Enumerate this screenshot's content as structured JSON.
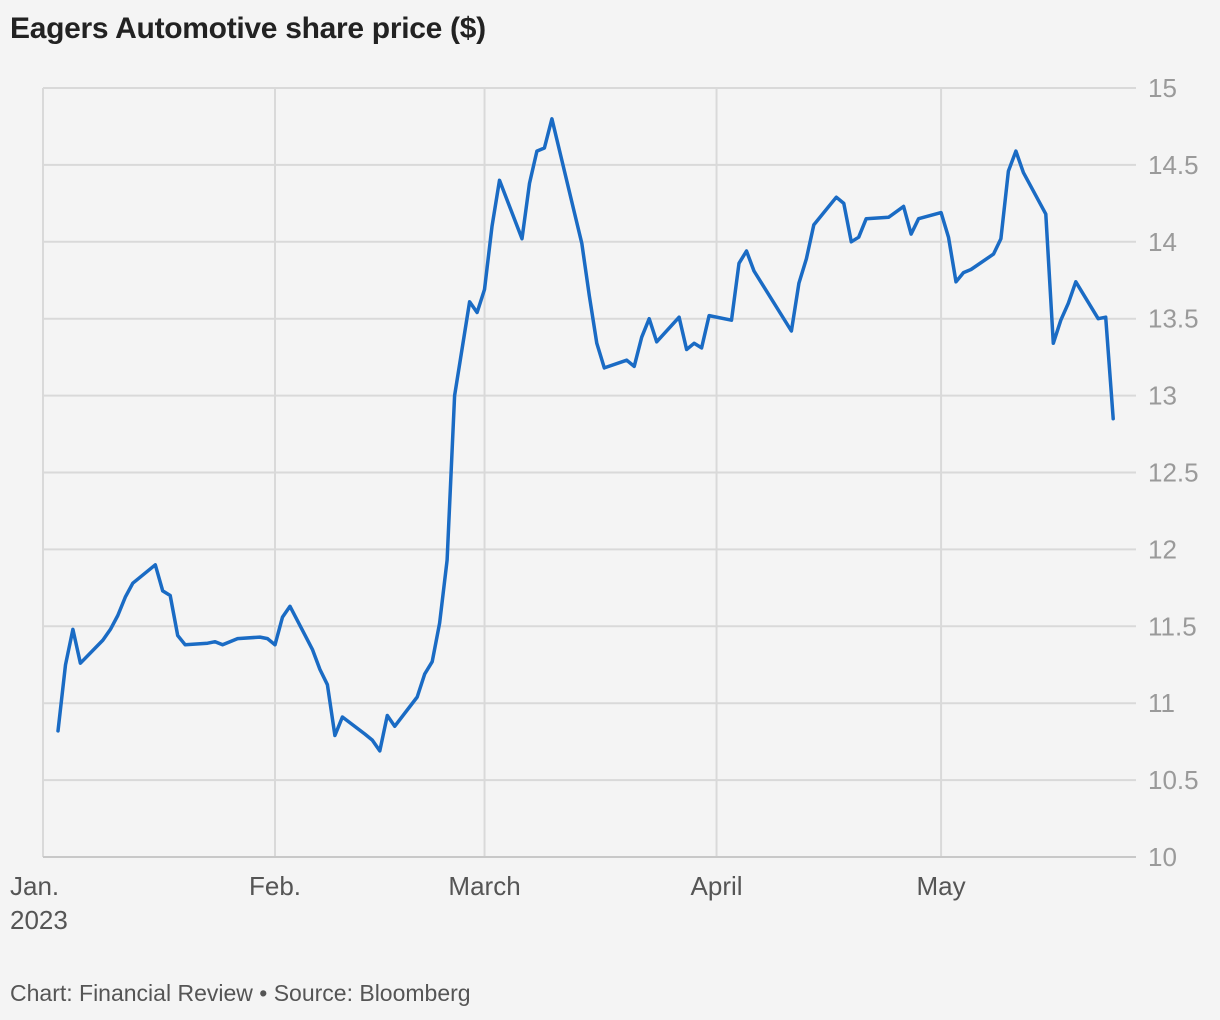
{
  "chart_data": {
    "type": "line",
    "title": "Eagers Automotive share price ($)",
    "credit": "Chart: Financial Review • Source: Bloomberg",
    "xlabel": "",
    "ylabel": "",
    "x_range": [
      "2023-01-01",
      "2023-05-24"
    ],
    "ylim": [
      10,
      15
    ],
    "yticks": [
      "15",
      "14.5",
      "14",
      "13.5",
      "13",
      "12.5",
      "12",
      "11.5",
      "11",
      "10.5",
      "10"
    ],
    "xticks": [
      {
        "date": "2023-01-01",
        "label": "Jan.",
        "sublabel": "2023"
      },
      {
        "date": "2023-02-01",
        "label": "Feb."
      },
      {
        "date": "2023-03-01",
        "label": "March"
      },
      {
        "date": "2023-04-01",
        "label": "April"
      },
      {
        "date": "2023-05-01",
        "label": "May"
      }
    ],
    "grid": true,
    "axis_side": "right",
    "series": [
      {
        "color": "#1a6bc4",
        "points": [
          [
            "2023-01-03",
            10.82
          ],
          [
            "2023-01-04",
            11.25
          ],
          [
            "2023-01-05",
            11.48
          ],
          [
            "2023-01-06",
            11.26
          ],
          [
            "2023-01-09",
            11.41
          ],
          [
            "2023-01-10",
            11.48
          ],
          [
            "2023-01-11",
            11.57
          ],
          [
            "2023-01-12",
            11.69
          ],
          [
            "2023-01-13",
            11.78
          ],
          [
            "2023-01-16",
            11.9
          ],
          [
            "2023-01-17",
            11.73
          ],
          [
            "2023-01-18",
            11.7
          ],
          [
            "2023-01-19",
            11.44
          ],
          [
            "2023-01-20",
            11.38
          ],
          [
            "2023-01-23",
            11.39
          ],
          [
            "2023-01-24",
            11.4
          ],
          [
            "2023-01-25",
            11.38
          ],
          [
            "2023-01-27",
            11.42
          ],
          [
            "2023-01-30",
            11.43
          ],
          [
            "2023-01-31",
            11.42
          ],
          [
            "2023-02-01",
            11.38
          ],
          [
            "2023-02-02",
            11.56
          ],
          [
            "2023-02-03",
            11.63
          ],
          [
            "2023-02-06",
            11.35
          ],
          [
            "2023-02-07",
            11.22
          ],
          [
            "2023-02-08",
            11.12
          ],
          [
            "2023-02-09",
            10.79
          ],
          [
            "2023-02-10",
            10.91
          ],
          [
            "2023-02-13",
            10.8
          ],
          [
            "2023-02-14",
            10.76
          ],
          [
            "2023-02-15",
            10.69
          ],
          [
            "2023-02-16",
            10.92
          ],
          [
            "2023-02-17",
            10.85
          ],
          [
            "2023-02-20",
            11.04
          ],
          [
            "2023-02-21",
            11.19
          ],
          [
            "2023-02-22",
            11.27
          ],
          [
            "2023-02-23",
            11.52
          ],
          [
            "2023-02-24",
            11.93
          ],
          [
            "2023-02-25",
            13.0
          ],
          [
            "2023-02-27",
            13.61
          ],
          [
            "2023-02-28",
            13.54
          ],
          [
            "2023-03-01",
            13.69
          ],
          [
            "2023-03-02",
            14.1
          ],
          [
            "2023-03-03",
            14.4
          ],
          [
            "2023-03-06",
            14.02
          ],
          [
            "2023-03-07",
            14.38
          ],
          [
            "2023-03-08",
            14.59
          ],
          [
            "2023-03-09",
            14.61
          ],
          [
            "2023-03-10",
            14.8
          ],
          [
            "2023-03-13",
            14.19
          ],
          [
            "2023-03-14",
            13.99
          ],
          [
            "2023-03-15",
            13.65
          ],
          [
            "2023-03-16",
            13.34
          ],
          [
            "2023-03-17",
            13.18
          ],
          [
            "2023-03-20",
            13.23
          ],
          [
            "2023-03-21",
            13.19
          ],
          [
            "2023-03-22",
            13.38
          ],
          [
            "2023-03-23",
            13.5
          ],
          [
            "2023-03-24",
            13.35
          ],
          [
            "2023-03-27",
            13.51
          ],
          [
            "2023-03-28",
            13.3
          ],
          [
            "2023-03-29",
            13.34
          ],
          [
            "2023-03-30",
            13.31
          ],
          [
            "2023-03-31",
            13.52
          ],
          [
            "2023-04-03",
            13.49
          ],
          [
            "2023-04-04",
            13.86
          ],
          [
            "2023-04-05",
            13.94
          ],
          [
            "2023-04-06",
            13.81
          ],
          [
            "2023-04-11",
            13.42
          ],
          [
            "2023-04-12",
            13.73
          ],
          [
            "2023-04-13",
            13.89
          ],
          [
            "2023-04-14",
            14.11
          ],
          [
            "2023-04-17",
            14.29
          ],
          [
            "2023-04-18",
            14.25
          ],
          [
            "2023-04-19",
            14.0
          ],
          [
            "2023-04-20",
            14.03
          ],
          [
            "2023-04-21",
            14.15
          ],
          [
            "2023-04-24",
            14.16
          ],
          [
            "2023-04-26",
            14.23
          ],
          [
            "2023-04-27",
            14.05
          ],
          [
            "2023-04-28",
            14.15
          ],
          [
            "2023-05-01",
            14.19
          ],
          [
            "2023-05-02",
            14.03
          ],
          [
            "2023-05-03",
            13.74
          ],
          [
            "2023-05-04",
            13.8
          ],
          [
            "2023-05-05",
            13.82
          ],
          [
            "2023-05-08",
            13.92
          ],
          [
            "2023-05-09",
            14.02
          ],
          [
            "2023-05-10",
            14.46
          ],
          [
            "2023-05-11",
            14.59
          ],
          [
            "2023-05-12",
            14.45
          ],
          [
            "2023-05-15",
            14.18
          ],
          [
            "2023-05-16",
            13.34
          ],
          [
            "2023-05-17",
            13.49
          ],
          [
            "2023-05-18",
            13.6
          ],
          [
            "2023-05-19",
            13.74
          ],
          [
            "2023-05-22",
            13.5
          ],
          [
            "2023-05-23",
            13.51
          ],
          [
            "2023-05-24",
            12.85
          ]
        ]
      }
    ]
  }
}
